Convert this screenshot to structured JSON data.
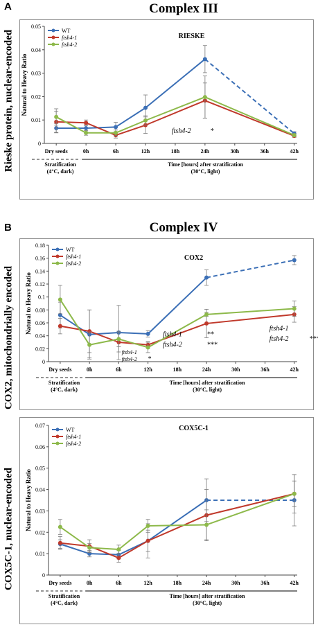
{
  "panels": [
    {
      "letter": "A",
      "title": "Complex III",
      "side_label": "Rieske protein, nuclear-encoded"
    },
    {
      "letter": "B",
      "title": "Complex IV",
      "side_label": "COX2, mitochondrially encoded"
    },
    {
      "letter": "",
      "title": "",
      "side_label": "COX5C-1, nuclear-encoded"
    }
  ],
  "below_axis": {
    "strat_label_1": "Stratification",
    "strat_label_2": "(4°C, dark)",
    "time_label_1": "Time [hours] after stratification",
    "time_label_2": "(30°C, light)"
  },
  "colors": {
    "WT": "#3b6fb6",
    "ftsh4-1": "#c0392b",
    "ftsh4-2": "#8db94a",
    "axis": "#444444",
    "grid": "#888888"
  },
  "chart_data": [
    {
      "type": "line",
      "title": "RIESKE",
      "xlabel": "",
      "ylabel": "Natural to Heavy Ratio",
      "categories": [
        "Dry seeds",
        "0h",
        "6h",
        "12h",
        "18h",
        "24h",
        "30h",
        "36h",
        "42h"
      ],
      "ylim": [
        0,
        0.05
      ],
      "yticks": [
        "0",
        "0.01",
        "0.02",
        "0.03",
        "0.04",
        "0.05"
      ],
      "grid": false,
      "legend": "top-left",
      "series": [
        {
          "name": "WT",
          "x": [
            "Dry seeds",
            "0h",
            "6h",
            "12h",
            "24h",
            "42h"
          ],
          "values": [
            0.0065,
            0.0065,
            0.007,
            0.0152,
            0.036,
            0.0042
          ],
          "errors": [
            0.002,
            0.0015,
            0.002,
            0.0055,
            0.0058,
            0.0008
          ],
          "dashed_after": "24h"
        },
        {
          "name": "ftsh4-1",
          "x": [
            "Dry seeds",
            "0h",
            "6h",
            "12h",
            "24h",
            "42h"
          ],
          "values": [
            0.0092,
            0.0088,
            0.0035,
            0.0078,
            0.0183,
            0.0032
          ],
          "errors": [
            0.0045,
            0.0012,
            0.0012,
            0.0035,
            0.0075,
            0.0006
          ],
          "dashed_after": null
        },
        {
          "name": "ftsh4-2",
          "x": [
            "Dry seeds",
            "0h",
            "6h",
            "12h",
            "24h",
            "42h"
          ],
          "values": [
            0.0113,
            0.0045,
            0.0045,
            0.0098,
            0.0198,
            0.0035
          ],
          "errors": [
            0.0035,
            0.001,
            0.0012,
            0.002,
            0.009,
            0.0007
          ],
          "dashed_after": null
        }
      ],
      "annotations": [
        {
          "text": "ftsh4-2",
          "italic": true,
          "at": "24h",
          "y": 0.0045,
          "dx": -48
        },
        {
          "text": "*",
          "italic": false,
          "at": "24h",
          "y": 0.0045,
          "dx": 8
        }
      ]
    },
    {
      "type": "line",
      "title": "COX2",
      "xlabel": "",
      "ylabel": "Natural to Heavy Ratio",
      "categories": [
        "Dry seeds",
        "0h",
        "6h",
        "12h",
        "18h",
        "24h",
        "30h",
        "36h",
        "42h"
      ],
      "ylim": [
        0,
        0.18
      ],
      "yticks": [
        "0",
        "0.02",
        "0.04",
        "0.06",
        "0.08",
        "0.1",
        "0.12",
        "0.14",
        "0.16",
        "0.18"
      ],
      "grid": false,
      "legend": "top-left",
      "series": [
        {
          "name": "WT",
          "x": [
            "Dry seeds",
            "0h",
            "6h",
            "12h",
            "24h",
            "42h"
          ],
          "values": [
            0.072,
            0.042,
            0.045,
            0.043,
            0.13,
            0.157
          ],
          "errors": [
            0.02,
            0.038,
            0.042,
            0.005,
            0.012,
            0.007
          ],
          "dashed_after": "24h"
        },
        {
          "name": "ftsh4-1",
          "x": [
            "Dry seeds",
            "0h",
            "6h",
            "12h",
            "24h",
            "42h"
          ],
          "values": [
            0.055,
            0.047,
            0.03,
            0.026,
            0.059,
            0.073
          ],
          "errors": [
            0.012,
            0.033,
            0.015,
            0.005,
            0.022,
            0.012
          ],
          "dashed_after": null
        },
        {
          "name": "ftsh4-2",
          "x": [
            "Dry seeds",
            "0h",
            "6h",
            "12h",
            "24h",
            "42h"
          ],
          "values": [
            0.096,
            0.026,
            0.035,
            0.022,
            0.073,
            0.082
          ],
          "errors": [
            0.022,
            0.02,
            0.012,
            0.008,
            0.003,
            0.012
          ],
          "dashed_after": null
        }
      ],
      "annotations": [
        {
          "text": "ftsh4-1",
          "italic": true,
          "at": "24h",
          "y": 0.039,
          "dx": -63
        },
        {
          "text": "**",
          "italic": false,
          "at": "24h",
          "y": 0.039,
          "dx": 1
        },
        {
          "text": "ftsh4-2",
          "italic": true,
          "at": "24h",
          "y": 0.023,
          "dx": -63
        },
        {
          "text": "***",
          "italic": false,
          "at": "24h",
          "y": 0.023,
          "dx": 1
        },
        {
          "text": "ftsh4-1",
          "italic": true,
          "at": "12h",
          "y": 0.012,
          "dx": -38,
          "small": true
        },
        {
          "text": "ftsh4-2",
          "italic": true,
          "at": "12h",
          "y": 0.001,
          "dx": -38,
          "small": true
        },
        {
          "text": "*",
          "italic": false,
          "at": "12h",
          "y": 0.001,
          "dx": 0
        },
        {
          "text": "ftsh4-1",
          "italic": true,
          "at": "42h",
          "y": 0.048,
          "dx": -36
        },
        {
          "text": "ftsh4-2",
          "italic": true,
          "at": "42h",
          "y": 0.032,
          "dx": -36
        },
        {
          "text": "***",
          "italic": false,
          "at": "42h",
          "y": 0.032,
          "dx": 22
        }
      ]
    },
    {
      "type": "line",
      "title": "COX5C-1",
      "xlabel": "",
      "ylabel": "Natural to Heavy Ratio",
      "categories": [
        "Dry seeds",
        "0h",
        "6h",
        "12h",
        "18h",
        "24h",
        "30h",
        "36h",
        "42h"
      ],
      "ylim": [
        0,
        0.07
      ],
      "yticks": [
        "0",
        "0.01",
        "0.02",
        "0.03",
        "0.04",
        "0.05",
        "0.06",
        "0.07"
      ],
      "grid": false,
      "legend": "top-left",
      "series": [
        {
          "name": "WT",
          "x": [
            "Dry seeds",
            "0h",
            "6h",
            "12h",
            "24h",
            "42h"
          ],
          "values": [
            0.0145,
            0.01,
            0.0095,
            0.016,
            0.035,
            0.035
          ],
          "errors": [
            0.002,
            0.0015,
            0.002,
            0.008,
            0.01,
            0.012
          ],
          "dashed_after": "24h"
        },
        {
          "name": "ftsh4-1",
          "x": [
            "Dry seeds",
            "0h",
            "6h",
            "12h",
            "24h",
            "42h"
          ],
          "values": [
            0.015,
            0.0135,
            0.008,
            0.016,
            0.028,
            0.038
          ],
          "errors": [
            0.003,
            0.003,
            0.002,
            0.005,
            0.012,
            0.006
          ],
          "dashed_after": null
        },
        {
          "name": "ftsh4-2",
          "x": [
            "Dry seeds",
            "0h",
            "6h",
            "12h",
            "24h",
            "42h"
          ],
          "values": [
            0.0225,
            0.0128,
            0.012,
            0.023,
            0.0235,
            0.038
          ],
          "errors": [
            0.0035,
            0.002,
            0.002,
            0.003,
            0.007,
            0.009
          ],
          "dashed_after": null
        }
      ],
      "annotations": []
    }
  ]
}
